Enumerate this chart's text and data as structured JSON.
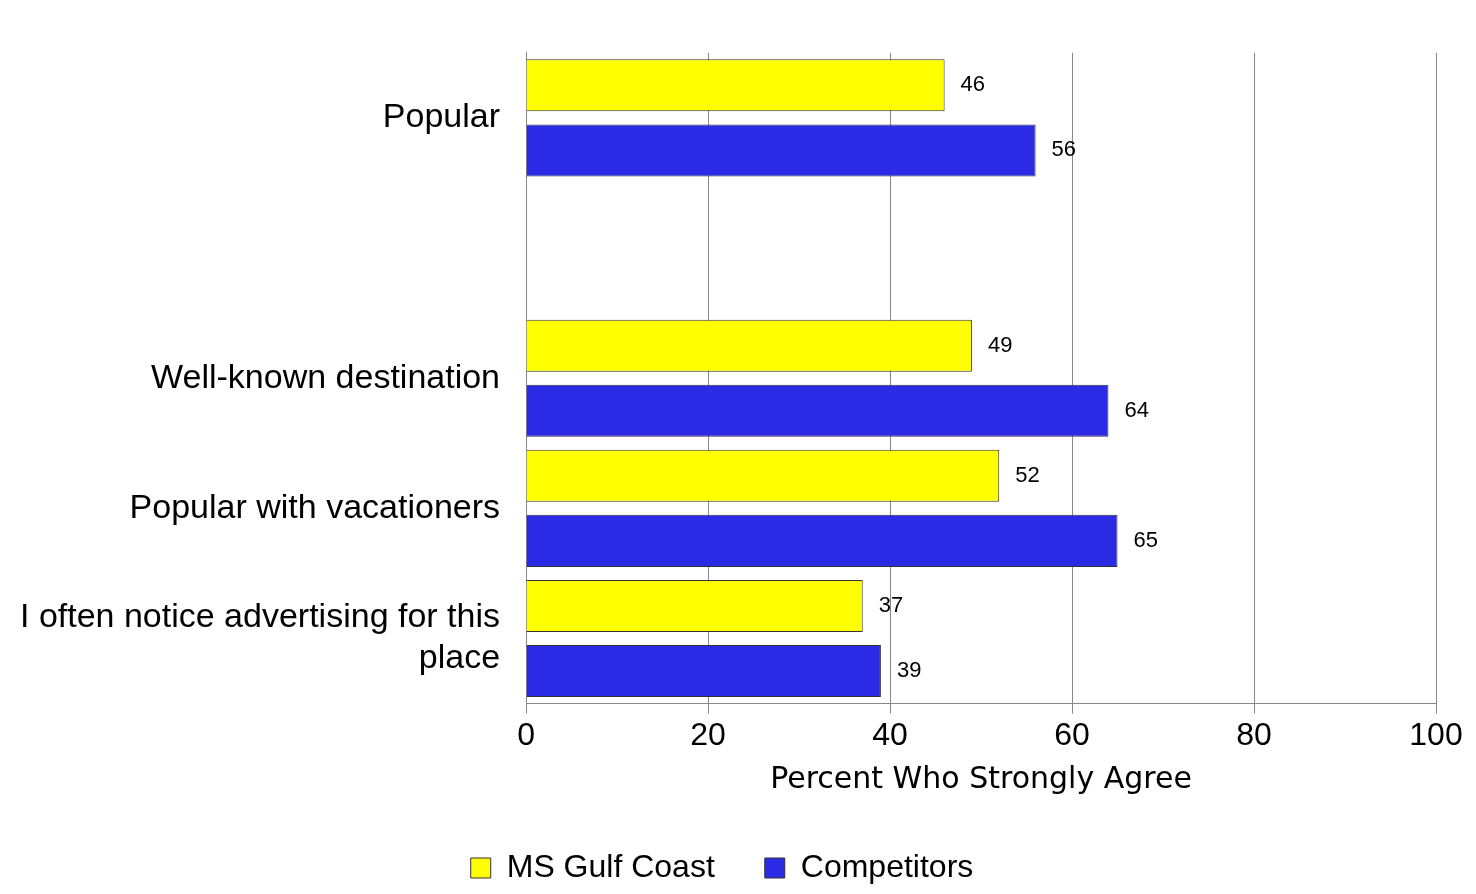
{
  "chart_data": {
    "type": "bar",
    "orientation": "horizontal",
    "xlabel": "Percent Who Strongly Agree",
    "categories": [
      "Popular",
      null,
      "Well-known destination",
      "Popular with vacationers",
      "I often notice advertising for this place"
    ],
    "series": [
      {
        "name": "MS Gulf Coast",
        "color": "#ffff00",
        "values": [
          46,
          null,
          49,
          52,
          37
        ]
      },
      {
        "name": "Competitors",
        "color": "#2b2be6",
        "values": [
          56,
          null,
          64,
          65,
          39
        ]
      }
    ],
    "xlim": [
      0,
      100
    ],
    "xticks": [
      0,
      20,
      40,
      60,
      80,
      100
    ],
    "grid": "x",
    "legend": "bottom",
    "data_labels": true
  }
}
